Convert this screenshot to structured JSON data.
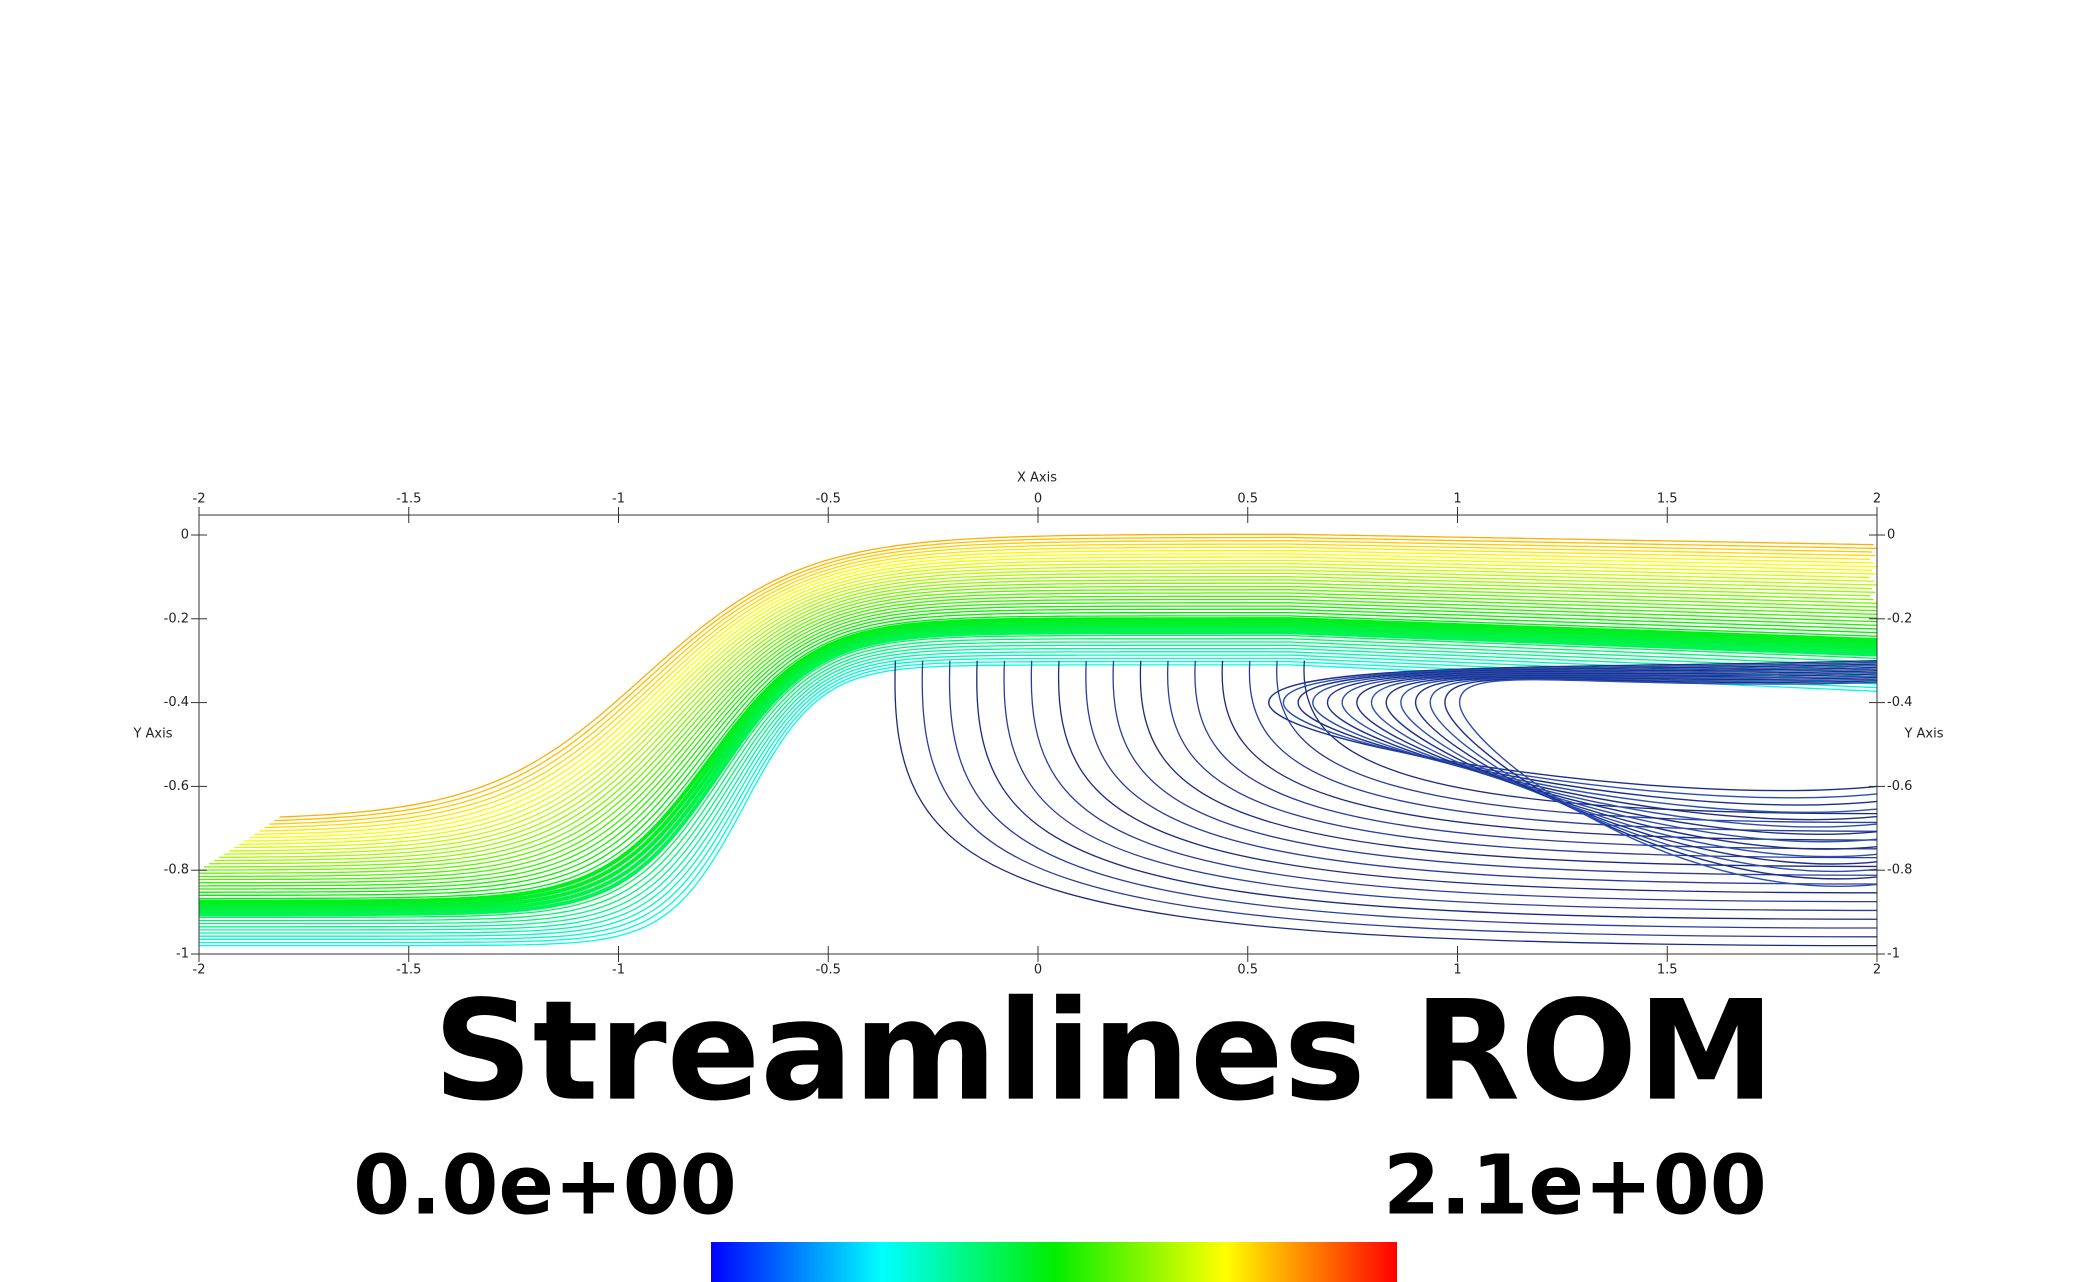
{
  "chart_data": {
    "type": "streamline",
    "title": "Streamlines ROM",
    "x_label": "X Axis",
    "y_label": "Y Axis",
    "xlim": [
      -2,
      2
    ],
    "ylim": [
      -1,
      0
    ],
    "xticks": [
      -2,
      -1.5,
      -1,
      -0.5,
      0,
      0.5,
      1,
      1.5,
      2
    ],
    "yticks": [
      0,
      -0.2,
      -0.4,
      -0.6,
      -0.8,
      -1
    ],
    "colormap": [
      "#0000ff",
      "#00ffff",
      "#00ee00",
      "#ffff00",
      "#ff0000"
    ],
    "colorbar_ticks": [
      {
        "value": 0,
        "label": "0.0e+00"
      },
      {
        "value": 2.1,
        "label": "2.1e+00"
      }
    ]
  }
}
